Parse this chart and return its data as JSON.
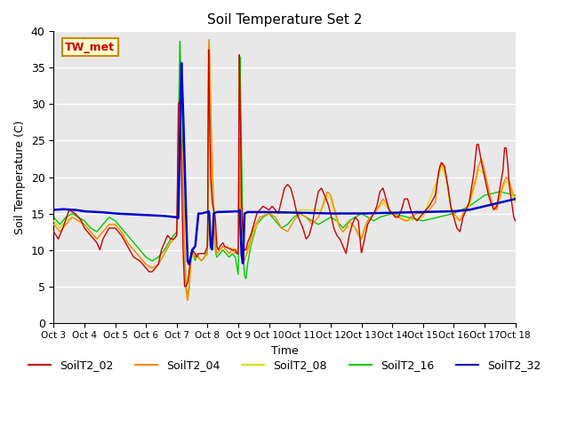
{
  "title": "Soil Temperature Set 2",
  "xlabel": "Time",
  "ylabel": "Soil Temperature (C)",
  "ylim": [
    0,
    40
  ],
  "annotation_text": "TW_met",
  "annotation_bg": "#ffffcc",
  "annotation_border": "#cc8800",
  "bg_color": "#e8e8e8",
  "series_colors": {
    "SoilT2_02": "#cc0000",
    "SoilT2_04": "#ff8800",
    "SoilT2_08": "#dddd00",
    "SoilT2_16": "#00cc00",
    "SoilT2_32": "#0000cc"
  },
  "x_tick_labels": [
    "Oct 3",
    "Oct 4",
    "Oct 5",
    "Oct 6",
    "Oct 7",
    "Oct 8",
    "Oct 9",
    "Oct 10",
    "Oct 11",
    "Oct 12",
    "Oct 13",
    "Oct 14",
    "Oct 15",
    "Oct 16",
    "Oct 17",
    "Oct 18"
  ],
  "yticks": [
    0,
    5,
    10,
    15,
    20,
    25,
    30,
    35,
    40
  ]
}
